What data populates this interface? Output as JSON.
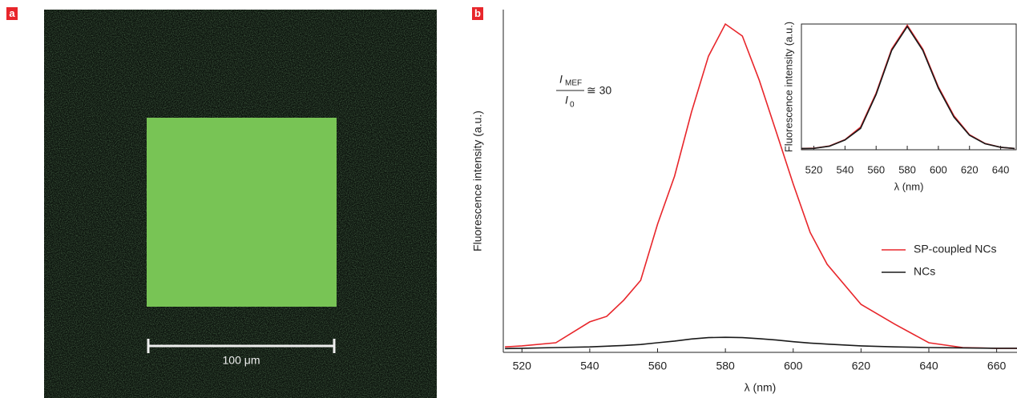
{
  "panel_labels": [
    "a",
    "b"
  ],
  "micrograph": {
    "scale_bar_label": "100 μm"
  },
  "chart_data": [
    {
      "type": "line",
      "y_label": "Fluorescence intensity (a.u.)",
      "x_label": "λ (nm)",
      "annotation": {
        "numerator": "I",
        "numerator_sub": "MEF",
        "denominator": "I",
        "denominator_sub": "0",
        "relation": "≅ 30"
      },
      "x": [
        515,
        520,
        530,
        540,
        545,
        550,
        555,
        560,
        565,
        570,
        575,
        580,
        585,
        590,
        595,
        600,
        605,
        610,
        620,
        630,
        640,
        650,
        660,
        666
      ],
      "series": [
        {
          "name": "SP-coupled NCs",
          "color": "#e8262b",
          "values": [
            0.016,
            0.019,
            0.028,
            0.089,
            0.105,
            0.152,
            0.21,
            0.374,
            0.514,
            0.701,
            0.864,
            0.958,
            0.923,
            0.794,
            0.643,
            0.491,
            0.35,
            0.257,
            0.14,
            0.082,
            0.028,
            0.014,
            0.012,
            0.012
          ]
        },
        {
          "name": "NCs",
          "color": "#1a1a1a",
          "values": [
            0.011,
            0.012,
            0.014,
            0.016,
            0.018,
            0.02,
            0.023,
            0.028,
            0.033,
            0.039,
            0.043,
            0.044,
            0.043,
            0.04,
            0.036,
            0.031,
            0.027,
            0.024,
            0.019,
            0.016,
            0.014,
            0.013,
            0.012,
            0.012
          ]
        }
      ],
      "xlim": [
        514.5,
        666
      ],
      "ylim": [
        0,
        1
      ],
      "xticks": [
        520,
        540,
        560,
        580,
        600,
        620,
        640,
        660
      ],
      "legend": "right"
    },
    {
      "type": "line",
      "y_label": "Fluorescence intensity (a.u.)",
      "x_label": "λ (nm)",
      "x": [
        512,
        520,
        530,
        540,
        550,
        560,
        570,
        580,
        590,
        600,
        610,
        620,
        630,
        640,
        649
      ],
      "series": [
        {
          "color": "#e8262b",
          "values": [
            0.01,
            0.012,
            0.03,
            0.08,
            0.18,
            0.45,
            0.8,
            0.99,
            0.8,
            0.5,
            0.27,
            0.12,
            0.05,
            0.02,
            0.01
          ]
        },
        {
          "color": "#1a1a1a",
          "values": [
            0.01,
            0.011,
            0.028,
            0.078,
            0.17,
            0.44,
            0.79,
            0.98,
            0.79,
            0.49,
            0.26,
            0.115,
            0.048,
            0.02,
            0.01
          ]
        }
      ],
      "xlim": [
        512,
        650
      ],
      "ylim": [
        0,
        1
      ],
      "xticks": [
        520,
        540,
        560,
        580,
        600,
        620,
        640
      ]
    }
  ]
}
